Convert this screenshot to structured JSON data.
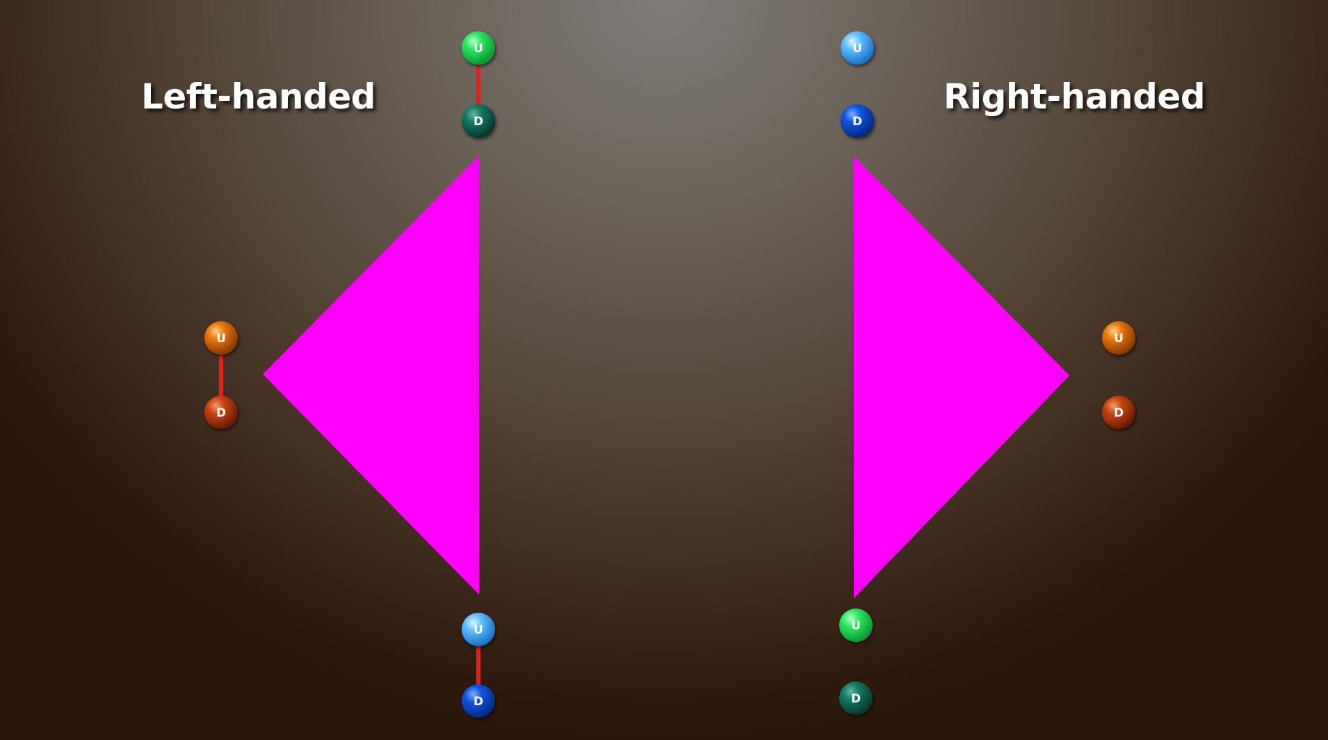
{
  "titles": {
    "left": "Left-handed",
    "right": "Right-handed"
  },
  "colors": {
    "triangle": "#ff00ff",
    "bond": "#e0201a",
    "green": "#22dd55",
    "dark_teal": "#0f6b5a",
    "light_blue": "#55bbff",
    "blue": "#0a4fd6",
    "orange": "#e06c10",
    "red_orange": "#c0400e"
  },
  "left_group": {
    "top_pair": {
      "upper": "U",
      "lower": "D",
      "bonded": true
    },
    "side_pair": {
      "upper": "U",
      "lower": "D",
      "bonded": true
    },
    "bottom_pair": {
      "upper": "U",
      "lower": "D",
      "bonded": true
    }
  },
  "right_group": {
    "top_pair": {
      "upper": "U",
      "lower": "D",
      "bonded": false
    },
    "side_pair": {
      "upper": "U",
      "lower": "D",
      "bonded": false
    },
    "bottom_pair": {
      "upper": "U",
      "lower": "D",
      "bonded": false
    }
  }
}
